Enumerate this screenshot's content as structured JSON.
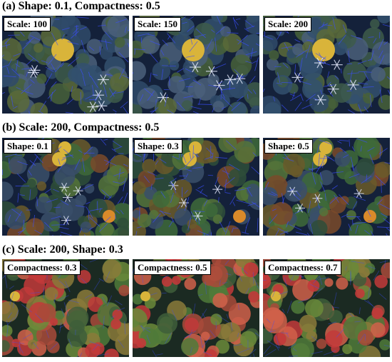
{
  "figure": {
    "rows": [
      {
        "title": "(a) Shape: 0.1, Compactness: 0.5",
        "style": "blue-segmented",
        "panels": [
          {
            "label": "Scale: 100"
          },
          {
            "label": "Scale: 150"
          },
          {
            "label": "Scale: 200"
          }
        ]
      },
      {
        "title": "(b) Scale: 200, Compactness: 0.5",
        "style": "blue-segmented-warm",
        "panels": [
          {
            "label": "Shape: 0.1"
          },
          {
            "label": "Shape: 0.3"
          },
          {
            "label": "Shape: 0.5"
          }
        ]
      },
      {
        "title": "(c) Scale: 200, Shape: 0.3",
        "style": "autumn-canopy",
        "panels": [
          {
            "label": "Compactness: 0.3"
          },
          {
            "label": "Compactness: 0.5"
          },
          {
            "label": "Compactness: 0.7"
          }
        ]
      }
    ],
    "colors": {
      "segment_lines": "#3a4dff",
      "crown_yellow": "#d9b43a",
      "crown_red": "#c23a3a",
      "crown_green": "#4f7a3a",
      "highlight_white": "#e8ecff"
    }
  }
}
